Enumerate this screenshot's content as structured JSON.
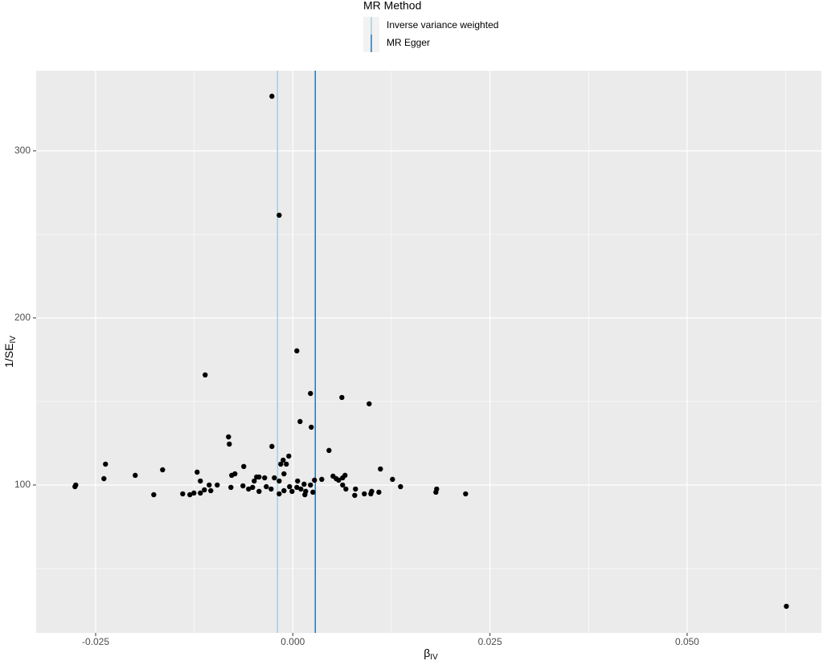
{
  "chart_data": {
    "type": "scatter",
    "xlabel": {
      "main": "β",
      "sub": "IV"
    },
    "ylabel": {
      "main": "1/SE",
      "sub": "IV"
    },
    "xlim": [
      -0.03254,
      0.06702
    ],
    "ylim": [
      11.5,
      348
    ],
    "xticks": [
      -0.025,
      {
        "value": 0,
        "label": "0.000"
      },
      0.025,
      {
        "value": 0.05,
        "label": "0.050"
      }
    ],
    "yticks": [
      100,
      200,
      300
    ],
    "x_minor_grid": [
      -0.0125,
      0.0125,
      0.0375,
      0.0625
    ],
    "y_minor_grid": [
      50,
      150,
      250
    ],
    "grid": true,
    "legend": {
      "title": "MR Method",
      "position": "top"
    },
    "vlines": [
      {
        "name": "Inverse variance weighted",
        "color": "#a6cee3",
        "x": -0.00194
      },
      {
        "name": "MR Egger",
        "color": "#1f78b4",
        "x": 0.00285
      }
    ],
    "series": [
      {
        "color": "#000000",
        "x": [
          -0.00265,
          -0.00173,
          0.00051,
          -0.01111,
          0.00224,
          0.00622,
          0.00968,
          0.00092,
          0.00234,
          -0.00815,
          -0.00805,
          -0.00265,
          0.00459,
          -0.00051,
          -0.00122,
          -0.00082,
          -0.00153,
          -0.02375,
          -0.00622,
          0.01111,
          -0.01651,
          -0.01213,
          -0.00734,
          -0.00112,
          -0.01998,
          -0.00775,
          -0.00459,
          -0.00428,
          0.0051,
          0.00662,
          0.00632,
          -0.00234,
          -0.02395,
          -0.00357,
          0.0055,
          0.00581,
          0.00367,
          0.00275,
          0.01264,
          -0.01172,
          -0.00489,
          -0.00173,
          0.00061,
          -0.02752,
          -0.02762,
          -0.00958,
          -0.0106,
          -0.00632,
          0.00143,
          0.00224,
          0.00632,
          0.01366,
          -0.00336,
          -0.00041,
          -0.0051,
          -0.00785,
          0.00051,
          -0.00561,
          -0.00275,
          0.00102,
          0.00673,
          0.01824,
          0.00795,
          -0.01121,
          -0.0104,
          -0.00112,
          -0.00428,
          -0.0001,
          0.00163,
          0.01,
          0.00255,
          0.01091,
          0.01814,
          -0.01254,
          -0.01172,
          -0.01396,
          -0.00173,
          0.00907,
          0.02191,
          0.00989,
          -0.01305,
          -0.01763,
          0.00153,
          0.00785,
          0.06258
        ],
        "values": [
          332.7,
          261.5,
          180.3,
          165.9,
          154.8,
          152.4,
          148.6,
          138.0,
          134.6,
          128.8,
          124.5,
          123.1,
          120.7,
          117.3,
          114.9,
          112.5,
          112.5,
          112.5,
          111.1,
          109.6,
          109.1,
          107.7,
          106.7,
          106.7,
          105.8,
          105.8,
          104.8,
          104.8,
          105.3,
          105.8,
          104.3,
          104.3,
          103.8,
          104.3,
          103.8,
          102.9,
          103.4,
          102.9,
          103.4,
          102.4,
          102.4,
          102.4,
          102.4,
          100.0,
          99.0,
          100.0,
          100.0,
          99.5,
          100.5,
          100.0,
          100.0,
          99.0,
          99.0,
          99.0,
          98.6,
          98.6,
          98.6,
          97.6,
          97.6,
          97.6,
          97.6,
          97.6,
          97.6,
          97.1,
          96.6,
          96.6,
          96.2,
          96.2,
          96.2,
          96.2,
          95.7,
          95.7,
          95.7,
          95.2,
          95.2,
          94.7,
          94.7,
          94.7,
          94.7,
          94.7,
          94.2,
          94.2,
          94.2,
          93.8,
          27.4
        ]
      }
    ]
  }
}
